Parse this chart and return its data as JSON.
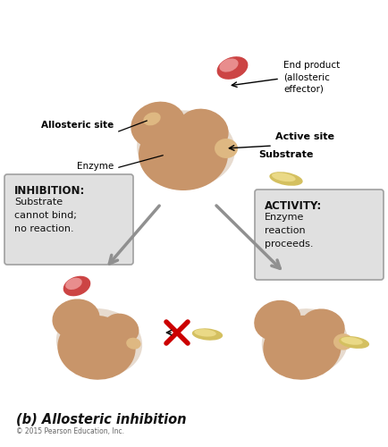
{
  "title": "(b) Allosteric inhibition",
  "copyright": "© 2015 Pearson Education, Inc.",
  "background_color": "#ffffff",
  "enzyme_color": "#c8956a",
  "enzyme_dark": "#a07040",
  "effector_color_outer": "#cc4444",
  "effector_color_inner": "#f0a0a0",
  "substrate_color_outer": "#d4c060",
  "substrate_color_inner": "#f0e090",
  "arrow_color": "#909090",
  "label_inhibition_bold": "INHIBITION:",
  "label_inhibition_text": "Substrate\ncannot bind;\nno reaction.",
  "label_activity_bold": "ACTIVITY:",
  "label_activity_text": "Enzyme\nreaction\nproceeds.",
  "label_end_product": "End product\n(allosteric\neffector)",
  "label_active_site": "Active site",
  "label_allosteric_site": "Allosteric site",
  "label_enzyme": "Enzyme",
  "label_substrate": "Substrate",
  "x_color": "#cc0000"
}
